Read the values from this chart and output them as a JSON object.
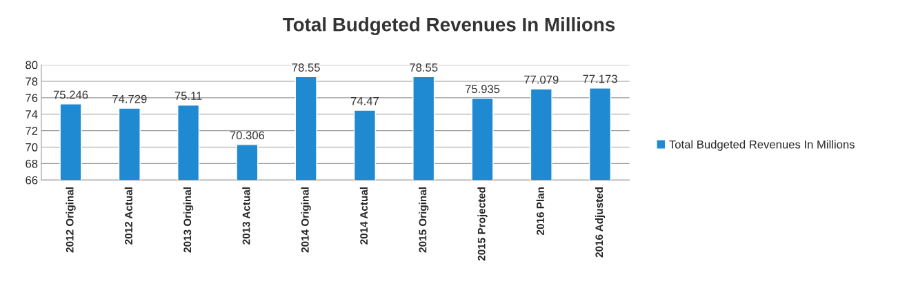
{
  "chart_data": {
    "type": "bar",
    "title": "Total Budgeted Revenues In Millions",
    "categories": [
      "2012 Original",
      "2012 Actual",
      "2013 Original",
      "2013 Actual",
      "2014 Original",
      "2014 Actual",
      "2015 Original",
      "2015 Projected",
      "2016 Plan",
      "2016 Adjusted"
    ],
    "series": [
      {
        "name": "Total Budgeted Revenues In Millions",
        "color": "#1f8ad2",
        "values": [
          75.246,
          74.729,
          75.11,
          70.306,
          78.55,
          74.47,
          78.55,
          75.935,
          77.079,
          77.173
        ]
      }
    ],
    "ylim": [
      66,
      80
    ],
    "yticks": [
      66,
      68,
      70,
      72,
      74,
      76,
      78,
      80
    ],
    "grid": "y",
    "legend": "right",
    "data_labels": true
  }
}
